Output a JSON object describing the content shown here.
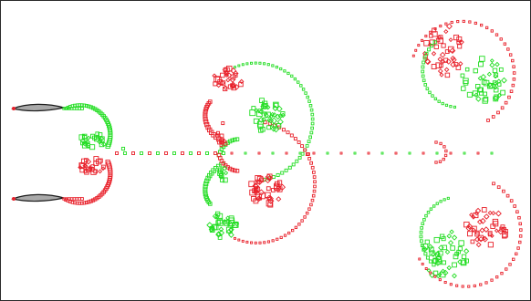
{
  "figure": {
    "background": "#ffffff",
    "border_color": "#2b2b2b",
    "marker_colors": {
      "red": "#e8202a",
      "green": "#22dd22"
    },
    "airfoil_fill": "#a9a9a9",
    "airfoil_stroke": "#1a1a1a",
    "airfoil_count": 2,
    "vortex_group_count": 3,
    "wake_trail_count": 1
  }
}
